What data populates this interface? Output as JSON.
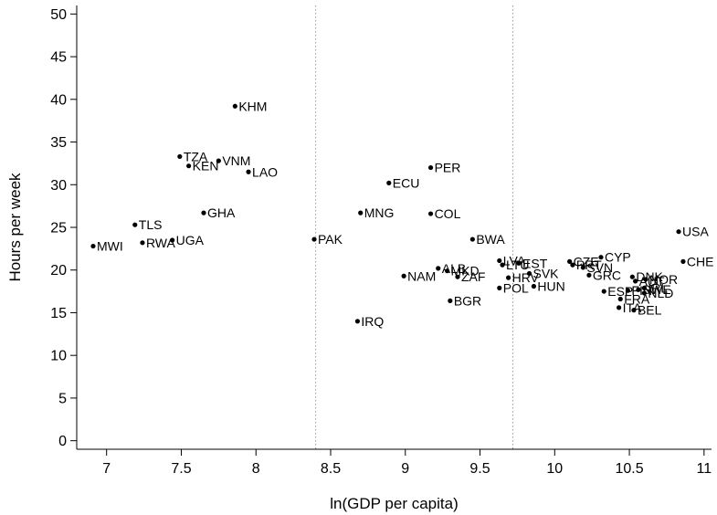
{
  "chart_data": {
    "type": "scatter",
    "xlabel": "ln(GDP per capita)",
    "ylabel": "Hours per week",
    "xlim": [
      6.8,
      11.05
    ],
    "ylim": [
      -1,
      51
    ],
    "xticks": [
      "7",
      "7.5",
      "8",
      "8.5",
      "9",
      "9.5",
      "10",
      "10.5",
      "11"
    ],
    "yticks": [
      "0",
      "5",
      "10",
      "15",
      "20",
      "25",
      "30",
      "35",
      "40",
      "45",
      "50"
    ],
    "grid": false,
    "legend": "none",
    "reference_lines_x": [
      8.4,
      9.72
    ],
    "marker_color": "#000000",
    "points": [
      {
        "label": "MWI",
        "x": 6.91,
        "y": 22.8
      },
      {
        "label": "TLS",
        "x": 7.19,
        "y": 25.3
      },
      {
        "label": "RWA",
        "x": 7.24,
        "y": 23.2
      },
      {
        "label": "UGA",
        "x": 7.44,
        "y": 23.5
      },
      {
        "label": "TZA",
        "x": 7.49,
        "y": 33.3
      },
      {
        "label": "KEN",
        "x": 7.55,
        "y": 32.2
      },
      {
        "label": "VNM",
        "x": 7.75,
        "y": 32.8
      },
      {
        "label": "GHA",
        "x": 7.65,
        "y": 26.7
      },
      {
        "label": "KHM",
        "x": 7.86,
        "y": 39.2
      },
      {
        "label": "LAO",
        "x": 7.95,
        "y": 31.5
      },
      {
        "label": "PAK",
        "x": 8.39,
        "y": 23.6
      },
      {
        "label": "IRQ",
        "x": 8.68,
        "y": 14.0
      },
      {
        "label": "MNG",
        "x": 8.7,
        "y": 26.7
      },
      {
        "label": "ECU",
        "x": 8.89,
        "y": 30.2
      },
      {
        "label": "NAM",
        "x": 8.99,
        "y": 19.3
      },
      {
        "label": "ALB",
        "x": 9.22,
        "y": 20.2
      },
      {
        "label": "MKD",
        "x": 9.28,
        "y": 19.9
      },
      {
        "label": "ZAF",
        "x": 9.35,
        "y": 19.2
      },
      {
        "label": "BGR",
        "x": 9.3,
        "y": 16.4
      },
      {
        "label": "COL",
        "x": 9.17,
        "y": 26.6
      },
      {
        "label": "PER",
        "x": 9.17,
        "y": 32.0
      },
      {
        "label": "BWA",
        "x": 9.45,
        "y": 23.6
      },
      {
        "label": "LVA",
        "x": 9.63,
        "y": 21.1
      },
      {
        "label": "LTU",
        "x": 9.65,
        "y": 20.6
      },
      {
        "label": "POL",
        "x": 9.63,
        "y": 17.9
      },
      {
        "label": "HRV",
        "x": 9.69,
        "y": 19.1
      },
      {
        "label": "EST",
        "x": 9.76,
        "y": 20.8
      },
      {
        "label": "HUN",
        "x": 9.86,
        "y": 18.1
      },
      {
        "label": "SVK",
        "x": 9.83,
        "y": 19.6
      },
      {
        "label": "CZE",
        "x": 10.1,
        "y": 21.0
      },
      {
        "label": "PRT",
        "x": 10.12,
        "y": 20.6
      },
      {
        "label": "CYP",
        "x": 10.31,
        "y": 21.5
      },
      {
        "label": "SVN",
        "x": 10.19,
        "y": 20.3
      },
      {
        "label": "GRC",
        "x": 10.23,
        "y": 19.4
      },
      {
        "label": "ESP",
        "x": 10.33,
        "y": 17.5
      },
      {
        "label": "ITA",
        "x": 10.43,
        "y": 15.6
      },
      {
        "label": "FRA",
        "x": 10.44,
        "y": 16.6
      },
      {
        "label": "BEL",
        "x": 10.53,
        "y": 15.3
      },
      {
        "label": "FIN",
        "x": 10.49,
        "y": 17.6
      },
      {
        "label": "DNK",
        "x": 10.52,
        "y": 19.2
      },
      {
        "label": "AUT",
        "x": 10.54,
        "y": 18.7
      },
      {
        "label": "SWE",
        "x": 10.56,
        "y": 17.7
      },
      {
        "label": "NLD",
        "x": 10.6,
        "y": 17.3
      },
      {
        "label": "NOR",
        "x": 10.61,
        "y": 18.9
      },
      {
        "label": "IRL",
        "x": 10.6,
        "y": 17.9
      },
      {
        "label": "USA",
        "x": 10.83,
        "y": 24.5
      },
      {
        "label": "CHE",
        "x": 10.86,
        "y": 21.0
      }
    ]
  }
}
